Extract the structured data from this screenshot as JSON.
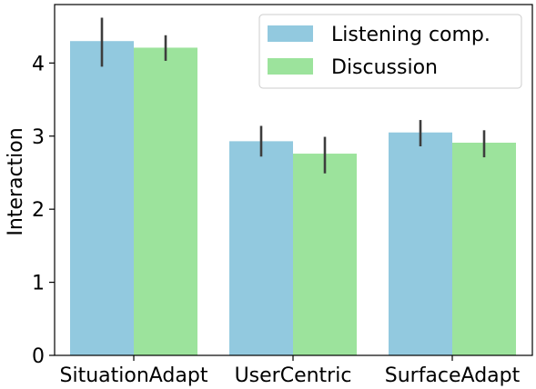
{
  "chart_data": {
    "type": "bar",
    "title": "",
    "xlabel": "",
    "ylabel": "Interaction",
    "categories": [
      "SituationAdapt",
      "UserCentric",
      "SurfaceAdapt"
    ],
    "series": [
      {
        "name": "Listening comp.",
        "color": "#92c9df",
        "values": [
          4.3,
          2.93,
          3.05
        ],
        "error_low": [
          3.95,
          2.72,
          2.86
        ],
        "error_high": [
          4.62,
          3.14,
          3.22
        ]
      },
      {
        "name": "Discussion",
        "color": "#9ce39c",
        "values": [
          4.21,
          2.76,
          2.91
        ],
        "error_low": [
          4.03,
          2.49,
          2.71
        ],
        "error_high": [
          4.38,
          2.99,
          3.08
        ]
      }
    ],
    "ylim": [
      0,
      4.8
    ],
    "yticks": [
      0,
      1,
      2,
      3,
      4
    ],
    "grid": false,
    "legend_position": "top-right",
    "errorbar_color": "#3d3d3d"
  }
}
